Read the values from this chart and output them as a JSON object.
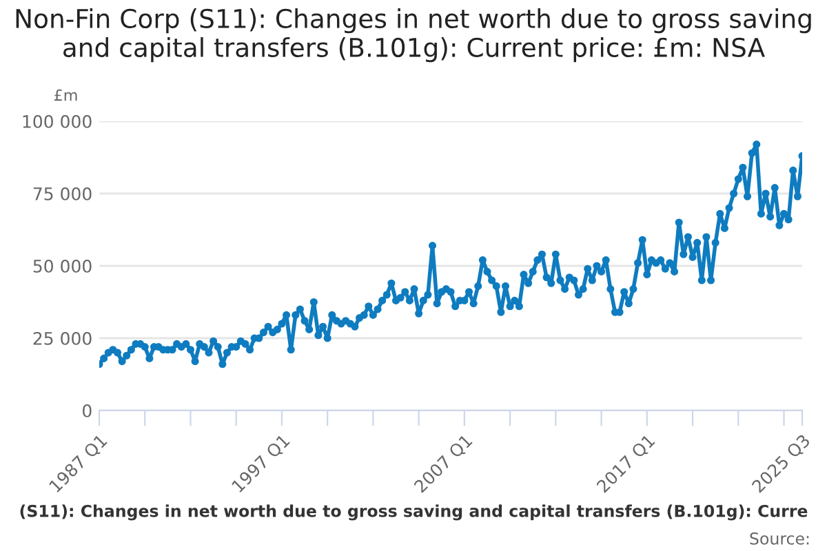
{
  "chart_data": {
    "type": "line",
    "title": "Non-Fin Corp (S11): Changes in net worth due to gross saving and capital transfers (B.101g): Current price: £m: NSA",
    "ylabel": "£m",
    "categories": [
      "1987 Q1",
      null,
      null,
      null,
      null,
      null,
      null,
      null,
      null,
      null,
      null,
      null,
      null,
      null,
      null,
      null,
      null,
      null,
      null,
      null,
      null,
      null,
      null,
      null,
      null,
      null,
      null,
      null,
      null,
      null,
      null,
      null,
      null,
      null,
      null,
      null,
      null,
      null,
      null,
      null,
      "1997 Q1",
      null,
      null,
      null,
      null,
      null,
      null,
      null,
      null,
      null,
      null,
      null,
      null,
      null,
      null,
      null,
      null,
      null,
      null,
      null,
      null,
      null,
      null,
      null,
      null,
      null,
      null,
      null,
      null,
      null,
      null,
      null,
      null,
      null,
      null,
      null,
      null,
      null,
      null,
      null,
      "2007 Q1",
      null,
      null,
      null,
      null,
      null,
      null,
      null,
      null,
      null,
      null,
      null,
      null,
      null,
      null,
      null,
      null,
      null,
      null,
      null,
      null,
      null,
      null,
      null,
      null,
      null,
      null,
      null,
      null,
      null,
      null,
      null,
      null,
      null,
      null,
      null,
      null,
      null,
      null,
      null,
      "2017 Q1",
      null,
      null,
      null,
      null,
      null,
      null,
      null,
      null,
      null,
      null,
      null,
      null,
      null,
      null,
      null,
      null,
      null,
      null,
      null,
      null,
      null,
      null,
      null,
      null,
      null,
      null,
      null,
      null,
      null,
      null,
      null,
      null,
      null,
      "2025 Q3"
    ],
    "series": [
      {
        "color": "#0f7cc0",
        "values": [
          16000,
          18000,
          20000,
          21000,
          20000,
          17000,
          19000,
          21000,
          23000,
          23000,
          22000,
          18000,
          22000,
          22000,
          21000,
          21000,
          21000,
          23000,
          22000,
          23000,
          21000,
          17000,
          23000,
          22000,
          20000,
          24000,
          22000,
          16000,
          20000,
          22000,
          22000,
          24000,
          23000,
          21000,
          25000,
          25000,
          27000,
          29000,
          27000,
          28000,
          30000,
          33000,
          21000,
          33000,
          35000,
          31000,
          28000,
          37500,
          26000,
          29000,
          25000,
          33000,
          31000,
          30000,
          31000,
          30000,
          29000,
          32000,
          33000,
          36000,
          33000,
          35000,
          38000,
          40000,
          44000,
          38000,
          39000,
          41000,
          38000,
          42000,
          33500,
          38000,
          40000,
          57000,
          37000,
          41000,
          42000,
          41000,
          36000,
          38000,
          38000,
          41000,
          37000,
          43000,
          52000,
          48000,
          45000,
          43000,
          34000,
          43000,
          36000,
          38000,
          36000,
          47000,
          44000,
          48000,
          52000,
          54000,
          46000,
          44000,
          54000,
          45000,
          42000,
          46000,
          45000,
          40000,
          42000,
          49000,
          45000,
          50000,
          48000,
          52000,
          42000,
          34000,
          34000,
          41000,
          37000,
          42000,
          51000,
          59000,
          47000,
          52000,
          51000,
          52000,
          49000,
          51000,
          48000,
          65000,
          54000,
          60000,
          53000,
          58000,
          45000,
          60000,
          45000,
          58000,
          68000,
          63000,
          70000,
          75000,
          80000,
          84000,
          74000,
          89000,
          92000,
          68000,
          75000,
          67000,
          77000,
          64000,
          68000,
          66000,
          83000,
          74000,
          88000
        ]
      }
    ],
    "ylim": [
      0,
      100000
    ],
    "yticks": [
      0,
      {
        "value": 25000,
        "label": "25 000"
      },
      {
        "value": 50000,
        "label": "50 000"
      },
      {
        "value": 75000,
        "label": "75 000"
      },
      {
        "value": 100000,
        "label": "100 000"
      }
    ],
    "grid": "y",
    "marker": "circle",
    "line_style": "solid",
    "annotations": [
      "(S11): Changes in net worth due to gross saving and capital transfers (B.101g): Curre",
      "Source:"
    ]
  }
}
